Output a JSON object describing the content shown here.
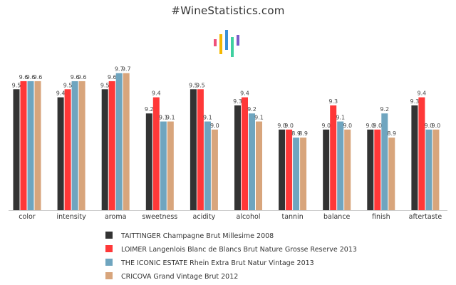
{
  "page": {
    "title": "#WineStatistics.com"
  },
  "logo": {
    "bar_colors": [
      "#f0507a",
      "#f5b800",
      "#3a8fd8",
      "#3fd0a0",
      "#7a5cc8"
    ]
  },
  "chart_data": {
    "type": "bar",
    "title": "",
    "xlabel": "",
    "ylabel": "",
    "ylim": [
      8.0,
      9.9
    ],
    "grid": false,
    "legend_position": "bottom",
    "categories": [
      "color",
      "intensity",
      "aroma",
      "sweetness",
      "acidity",
      "alcohol",
      "tannin",
      "balance",
      "finish",
      "aftertaste"
    ],
    "series": [
      {
        "name": "TAITTINGER Champagne Brut Millesime 2008",
        "color": "#333333",
        "values": [
          9.5,
          9.4,
          9.5,
          9.2,
          9.5,
          9.3,
          9.0,
          9.0,
          9.0,
          9.3
        ],
        "labels": [
          "9.5",
          "9.4",
          "9.5",
          "9.2",
          "9.5",
          "9.3",
          "9.0",
          "9.0",
          "9.0",
          "9.3"
        ]
      },
      {
        "name": "LOIMER Langenlois Blanc de Blancs Brut Nature Grosse Reserve 2013",
        "color": "#ff3838",
        "values": [
          9.6,
          9.5,
          9.6,
          9.4,
          9.5,
          9.4,
          9.0,
          9.3,
          9.0,
          9.4
        ],
        "labels": [
          "9.6",
          "9.5",
          "9.6",
          "9.4",
          "9.5",
          "9.4",
          "9.0",
          "9.3",
          "9.0",
          "9.4"
        ]
      },
      {
        "name": "THE ICONIC ESTATE Rhein Extra Brut Natur Vintage 2013",
        "color": "#6fa5bf",
        "values": [
          9.6,
          9.6,
          9.7,
          9.1,
          9.1,
          9.2,
          8.9,
          9.1,
          9.2,
          9.0
        ],
        "labels": [
          "9.6",
          "9.6",
          "9.7",
          "9.1",
          "9.1",
          "9.2",
          "8.9",
          "9.1",
          "9.2",
          "9.0"
        ]
      },
      {
        "name": "CRICOVA Grand Vintage Brut 2012",
        "color": "#d8a57c",
        "values": [
          9.6,
          9.6,
          9.7,
          9.1,
          9.0,
          9.1,
          8.9,
          9.0,
          8.9,
          9.0
        ],
        "labels": [
          "9.6",
          "9.6",
          "9.7",
          "9.1",
          "9.0",
          "9.1",
          "8.9",
          "9.0",
          "8.9",
          "9.0"
        ]
      }
    ]
  }
}
